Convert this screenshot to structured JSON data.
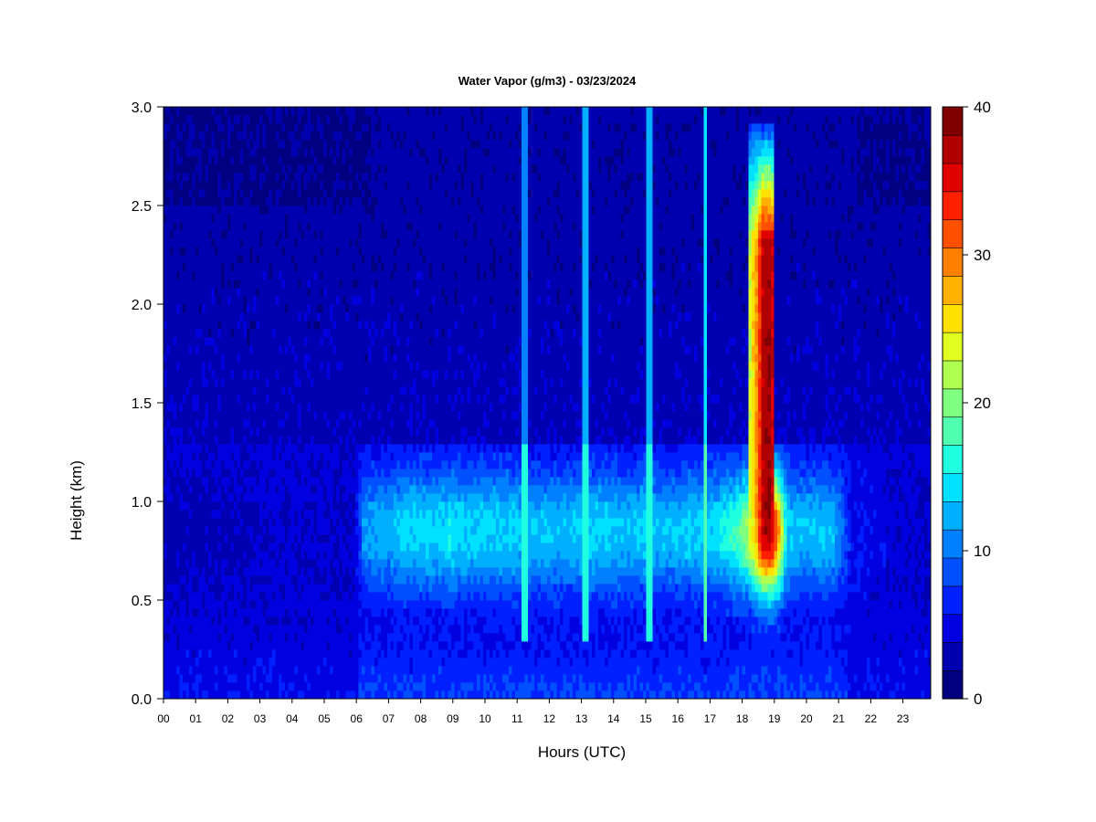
{
  "chart_data": {
    "type": "heatmap",
    "title": "Water Vapor (g/m3) - 03/23/2024",
    "xlabel": "Hours (UTC)",
    "ylabel": "Height (km)",
    "xlim": [
      0,
      24
    ],
    "ylim": [
      0.0,
      3.0
    ],
    "x_ticks": [
      "00",
      "01",
      "02",
      "03",
      "04",
      "05",
      "06",
      "07",
      "08",
      "09",
      "10",
      "11",
      "12",
      "13",
      "14",
      "15",
      "16",
      "17",
      "18",
      "19",
      "20",
      "21",
      "22",
      "23"
    ],
    "y_ticks": [
      "0.0",
      "0.5",
      "1.0",
      "1.5",
      "2.0",
      "2.5",
      "3.0"
    ],
    "colorbar": {
      "min": 0,
      "max": 40,
      "ticks": [
        "0",
        "10",
        "20",
        "30",
        "40"
      ],
      "colors": [
        "#000080",
        "#0000b0",
        "#0000e0",
        "#0020ff",
        "#0050ff",
        "#0080ff",
        "#00b0ff",
        "#00e0ff",
        "#20ffe0",
        "#50ffb0",
        "#80ff80",
        "#b0ff50",
        "#e0ff20",
        "#ffe000",
        "#ffb000",
        "#ff8000",
        "#ff5000",
        "#ff2000",
        "#e00000",
        "#b00000",
        "#800000"
      ]
    },
    "x_hours": [
      0.0,
      0.5,
      1.0,
      1.5,
      2.0,
      2.5,
      3.0,
      3.5,
      4.0,
      4.5,
      5.0,
      5.5,
      6.0,
      6.25,
      6.5,
      7.0,
      7.5,
      8.0,
      8.5,
      9.0,
      9.5,
      10.0,
      10.5,
      11.0,
      11.5,
      12.0,
      12.5,
      13.0,
      13.5,
      14.0,
      14.5,
      15.0,
      15.5,
      16.0,
      16.5,
      17.0,
      17.5,
      18.0,
      18.25,
      18.5,
      18.75,
      19.0,
      19.25,
      19.5,
      20.0,
      20.5,
      21.0,
      21.5,
      22.0,
      22.5,
      23.0,
      23.5,
      24.0
    ],
    "heights_km": [
      0.0,
      0.1,
      0.2,
      0.3,
      0.4,
      0.5,
      0.6,
      0.7,
      0.8,
      0.9,
      1.0,
      1.1,
      1.2,
      1.3,
      1.4,
      1.5,
      1.6,
      1.7,
      1.8,
      1.9,
      2.0,
      2.1,
      2.2,
      2.3,
      2.4,
      2.5,
      2.6,
      2.7,
      2.8,
      2.9,
      3.0
    ],
    "profile_peak_g_m3": [
      3,
      3,
      3,
      3,
      3,
      3,
      4,
      4,
      4,
      4,
      4,
      4,
      4,
      11,
      12,
      12,
      14,
      14,
      14,
      15,
      14,
      14,
      14,
      14,
      13,
      13,
      13,
      14,
      14,
      14,
      13,
      14,
      13,
      13,
      14,
      14,
      15,
      18,
      21,
      27,
      37,
      38,
      28,
      14,
      13,
      13,
      13,
      6,
      5,
      5,
      4,
      4,
      4
    ],
    "spikes": [
      {
        "hour": 11.3,
        "value": 16
      },
      {
        "hour": 13.2,
        "value": 17
      },
      {
        "hour": 15.2,
        "value": 17
      },
      {
        "hour": 16.95,
        "value": 19
      }
    ]
  }
}
